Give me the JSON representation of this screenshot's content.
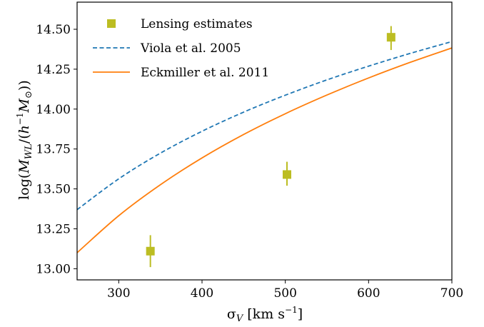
{
  "chart_data": {
    "type": "scatter",
    "xlabel": "σ_V [km s⁻¹]",
    "ylabel": "log(M_WL/(h⁻¹M_⊙))",
    "xlim": [
      250,
      700
    ],
    "ylim": [
      12.93,
      14.67
    ],
    "x_ticks": [
      300,
      400,
      500,
      600,
      700
    ],
    "y_ticks": [
      13.0,
      13.25,
      13.5,
      13.75,
      14.0,
      14.25,
      14.5
    ],
    "x_tick_labels": [
      "300",
      "400",
      "500",
      "600",
      "700"
    ],
    "y_tick_labels": [
      "13.00",
      "13.25",
      "13.50",
      "13.75",
      "14.00",
      "14.25",
      "14.50"
    ],
    "grid": false,
    "legend_position": "top-left",
    "series": [
      {
        "name": "Lensing estimates",
        "kind": "points",
        "color": "#bcbd22",
        "marker": "square",
        "points": [
          {
            "x": 338,
            "y": 13.11,
            "yerr": [
              0.1,
              0.1
            ]
          },
          {
            "x": 502,
            "y": 13.59,
            "yerr": [
              0.07,
              0.08
            ]
          },
          {
            "x": 627,
            "y": 14.45,
            "yerr": [
              0.08,
              0.07
            ]
          }
        ]
      },
      {
        "name": "Viola et al. 2005",
        "kind": "line",
        "style": "dashed",
        "color": "#1f77b4",
        "x": [
          250,
          300,
          350,
          400,
          450,
          500,
          550,
          600,
          650,
          700
        ],
        "y": [
          13.37,
          13.563,
          13.724,
          13.861,
          13.981,
          14.087,
          14.183,
          14.269,
          14.349,
          14.423
        ]
      },
      {
        "name": "Eckmiller et al. 2011",
        "kind": "line",
        "style": "solid",
        "color": "#ff7f0e",
        "x": [
          250,
          300,
          350,
          400,
          450,
          500,
          550,
          600,
          650,
          700
        ],
        "y": [
          13.1,
          13.332,
          13.526,
          13.694,
          13.841,
          13.971,
          14.088,
          14.195,
          14.293,
          14.383
        ]
      }
    ]
  }
}
